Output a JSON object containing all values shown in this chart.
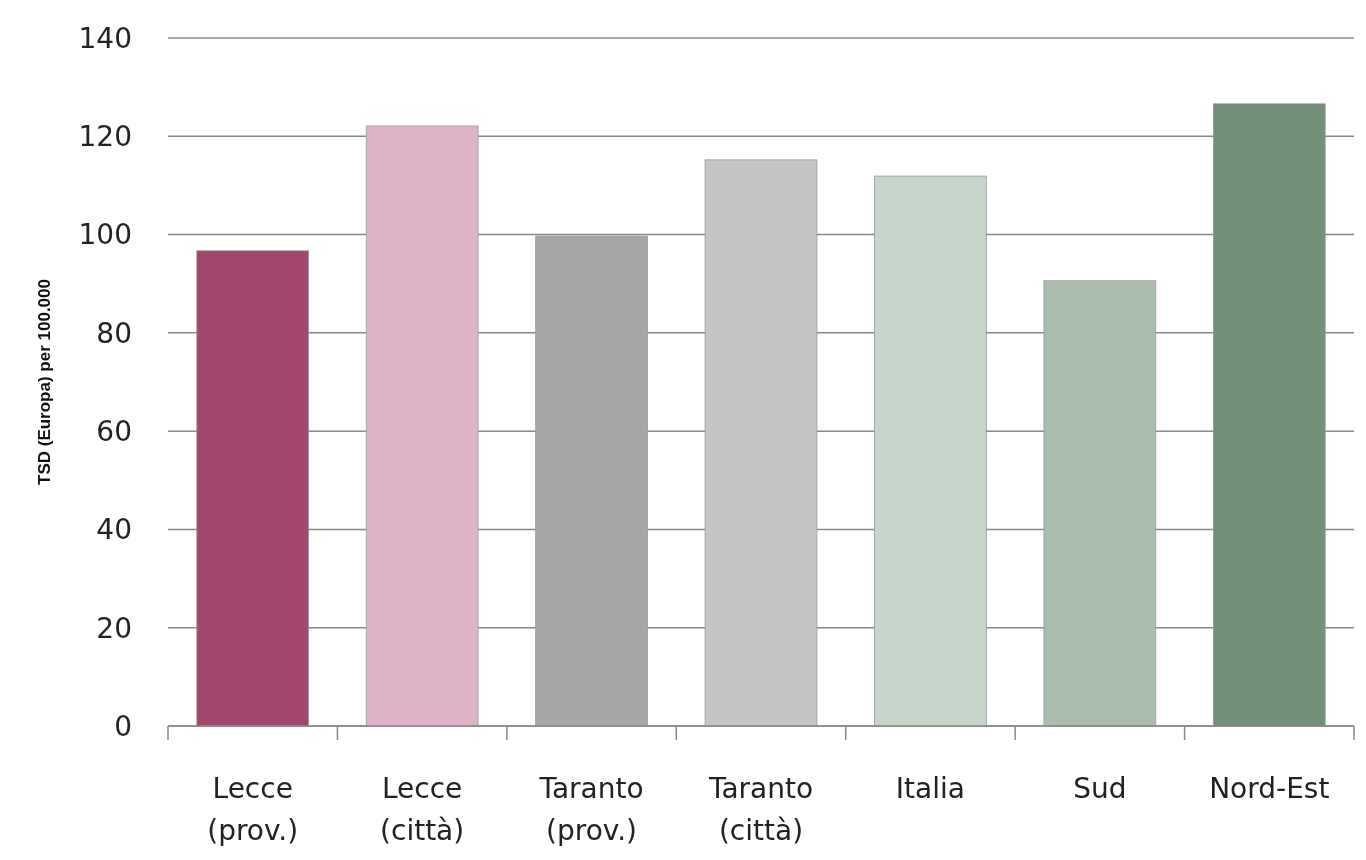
{
  "chart_data": {
    "type": "bar",
    "ylabel": "TSD (Europa) per 100.000",
    "categories": [
      "Lecce (prov.)",
      "Lecce (città)",
      "Taranto (prov.)",
      "Taranto (città)",
      "Italia",
      "Sud",
      "Nord-Est"
    ],
    "values": [
      96.7,
      122.1,
      99.7,
      115.2,
      111.9,
      90.6,
      126.6
    ],
    "colors": [
      "#a4476f",
      "#dfb2c7",
      "#a6a7a9",
      "#c4c5c7",
      "#c6d4ca",
      "#aabcad",
      "#728f77"
    ],
    "ylim": [
      0,
      140
    ],
    "yticks": [
      0,
      20,
      40,
      60,
      80,
      100,
      120,
      140
    ],
    "grid": "y"
  }
}
